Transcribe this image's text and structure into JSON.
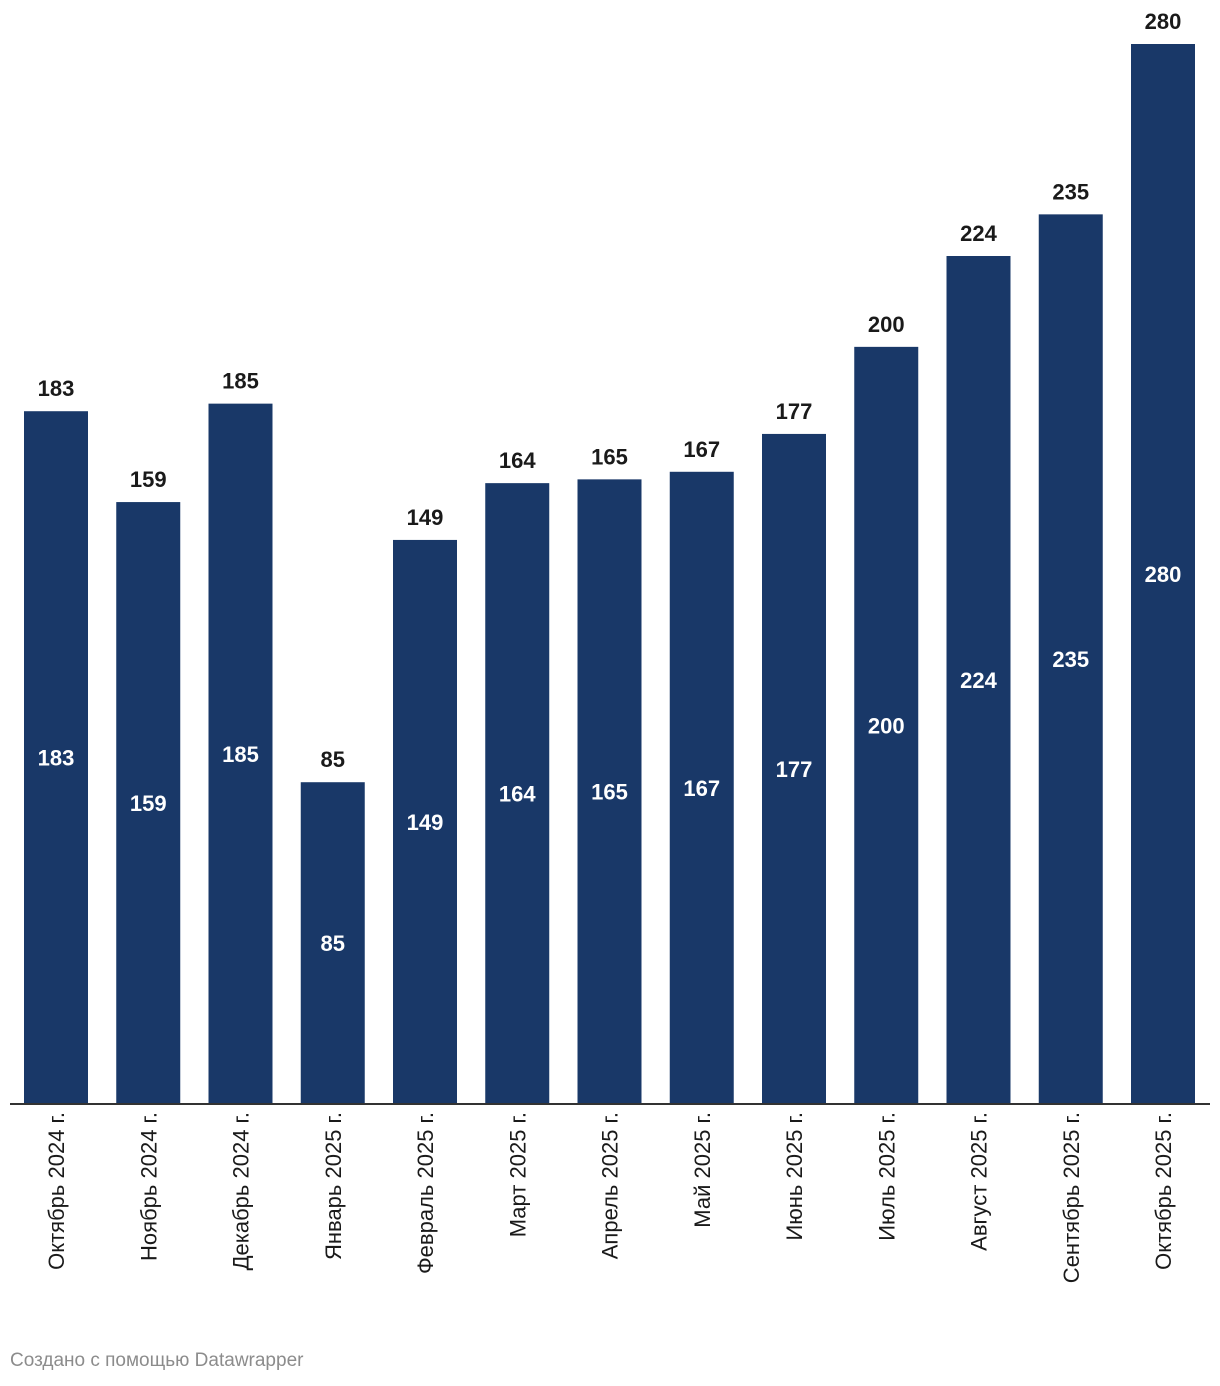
{
  "chart_data": {
    "type": "bar",
    "categories": [
      "Октябрь 2024 г.",
      "Ноябрь 2024 г.",
      "Декабрь 2024 г.",
      "Январь 2025 г.",
      "Февраль 2025 г.",
      "Март 2025 г.",
      "Апрель 2025 г.",
      "Май 2025 г.",
      "Июнь 2025 г.",
      "Июль 2025 г.",
      "Август 2025 г.",
      "Сентябрь 2025 г.",
      "Октябрь 2025 г."
    ],
    "values": [
      183,
      159,
      185,
      85,
      149,
      164,
      165,
      167,
      177,
      200,
      224,
      235,
      280
    ],
    "title": "",
    "xlabel": "",
    "ylabel": "",
    "ylim": [
      0,
      280
    ],
    "grid": false,
    "legend": "none",
    "bar_color": "#193868",
    "value_labels": "above bar and inside bar (centered)"
  },
  "footer": {
    "credit": "Создано с помощью Datawrapper"
  }
}
